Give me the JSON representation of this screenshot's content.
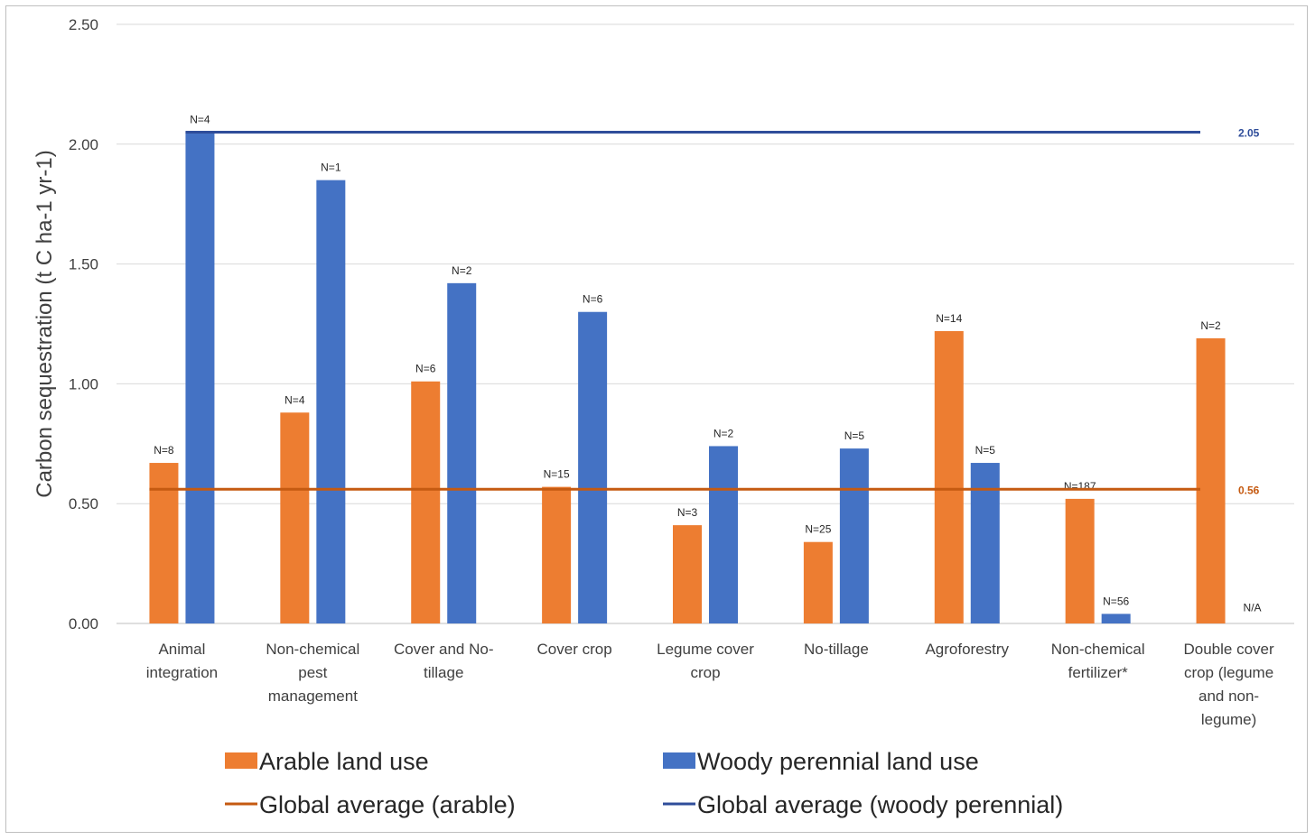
{
  "chart_data": {
    "type": "bar",
    "ylabel": "Carbon sequestration (t C ha-1 yr-1)",
    "xlabel": "",
    "ylim": [
      0,
      2.5
    ],
    "yticks": [
      "0.00",
      "0.50",
      "1.00",
      "1.50",
      "2.00",
      "2.50"
    ],
    "grid": true,
    "legend_position": "bottom",
    "categories": [
      [
        "Animal",
        "integration"
      ],
      [
        "Non-chemical",
        "pest",
        "management"
      ],
      [
        "Cover and No-",
        "tillage"
      ],
      [
        "Cover crop"
      ],
      [
        "Legume cover",
        "crop"
      ],
      [
        "No-tillage"
      ],
      [
        "Agroforestry"
      ],
      [
        "Non-chemical",
        "fertilizer*"
      ],
      [
        "Double cover",
        "crop (legume",
        "and non-",
        "legume)"
      ]
    ],
    "series": [
      {
        "name": "Arable land use",
        "color": "#ED7D31",
        "values": [
          0.67,
          0.88,
          1.01,
          0.57,
          0.41,
          0.34,
          1.22,
          0.52,
          1.19
        ],
        "n_labels": [
          "N=8",
          "N=4",
          "N=6",
          "N=15",
          "N=3",
          "N=25",
          "N=14",
          "N=187",
          "N=2"
        ]
      },
      {
        "name": "Woody perennial land use",
        "color": "#4472C4",
        "values": [
          2.05,
          1.85,
          1.42,
          1.3,
          0.74,
          0.73,
          0.67,
          0.04,
          null
        ],
        "n_labels": [
          "N=4",
          "N=1",
          "N=2",
          "N=6",
          "N=2",
          "N=5",
          "N=5",
          "N=56",
          "N/A"
        ]
      }
    ],
    "reference_lines": [
      {
        "name": "Global average (arable)",
        "value": 0.56,
        "label": "0.56",
        "color": "#C55A11"
      },
      {
        "name": "Global average (woody perennial)",
        "value": 2.05,
        "label": "2.05",
        "color": "#2F4D9A"
      }
    ]
  }
}
